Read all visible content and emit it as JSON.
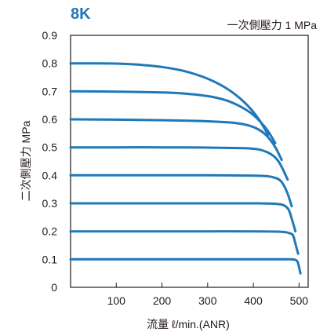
{
  "colors": {
    "series": "#1f78b9",
    "title": "#1f78b9",
    "axis": "#231815",
    "text": "#231815"
  },
  "chart_data": {
    "type": "line",
    "title": "8K",
    "subtitle": "一次側壓力 1 MPa",
    "xlabel": "流量  ℓ/min.(ANR)",
    "ylabel": "二次側壓力 MPa",
    "xlim": [
      0,
      520
    ],
    "ylim": [
      0,
      0.9
    ],
    "xticks": [
      100,
      200,
      300,
      400,
      500
    ],
    "xtick_labels": [
      "100",
      "200",
      "300",
      "400",
      "500"
    ],
    "yticks": [
      0,
      0.1,
      0.2,
      0.3,
      0.4,
      0.5,
      0.6,
      0.7,
      0.8,
      0.9
    ],
    "ytick_labels": [
      "0",
      "0.1",
      "0.2",
      "0.3",
      "0.4",
      "0.5",
      "0.6",
      "0.7",
      "0.8",
      "0.9"
    ],
    "grid": false,
    "legend": "none",
    "series": [
      {
        "x": [
          0,
          100,
          200,
          300,
          400,
          450,
          470,
          480,
          490,
          497,
          503
        ],
        "y": [
          0.1,
          0.1,
          0.1,
          0.1,
          0.1,
          0.1,
          0.1,
          0.1,
          0.099,
          0.09,
          0.05
        ]
      },
      {
        "x": [
          0,
          100,
          200,
          300,
          400,
          450,
          470,
          480,
          487,
          493,
          498
        ],
        "y": [
          0.2,
          0.2,
          0.2,
          0.2,
          0.2,
          0.199,
          0.197,
          0.193,
          0.185,
          0.15,
          0.12
        ]
      },
      {
        "x": [
          0,
          100,
          200,
          300,
          400,
          440,
          460,
          470,
          478,
          485,
          492
        ],
        "y": [
          0.3,
          0.3,
          0.3,
          0.3,
          0.3,
          0.299,
          0.296,
          0.29,
          0.275,
          0.24,
          0.2
        ]
      },
      {
        "x": [
          0,
          100,
          200,
          300,
          400,
          430,
          450,
          460,
          468,
          476,
          484
        ],
        "y": [
          0.4,
          0.4,
          0.4,
          0.4,
          0.399,
          0.397,
          0.39,
          0.38,
          0.36,
          0.33,
          0.29
        ]
      },
      {
        "x": [
          0,
          100,
          200,
          300,
          380,
          410,
          430,
          445,
          455,
          465,
          475
        ],
        "y": [
          0.5,
          0.5,
          0.5,
          0.499,
          0.497,
          0.493,
          0.483,
          0.468,
          0.45,
          0.42,
          0.385
        ]
      },
      {
        "x": [
          0,
          100,
          200,
          300,
          360,
          390,
          410,
          425,
          438,
          450,
          462
        ],
        "y": [
          0.6,
          0.599,
          0.597,
          0.593,
          0.587,
          0.578,
          0.565,
          0.548,
          0.525,
          0.495,
          0.455
        ]
      },
      {
        "x": [
          0,
          100,
          200,
          250,
          300,
          340,
          370,
          395,
          415,
          432,
          448
        ],
        "y": [
          0.7,
          0.699,
          0.696,
          0.692,
          0.683,
          0.668,
          0.647,
          0.622,
          0.592,
          0.558,
          0.515
        ]
      },
      {
        "x": [
          0,
          100,
          150,
          200,
          250,
          300,
          340,
          370,
          395,
          415,
          432
        ],
        "y": [
          0.8,
          0.799,
          0.795,
          0.787,
          0.772,
          0.745,
          0.712,
          0.676,
          0.636,
          0.593,
          0.545
        ]
      }
    ]
  }
}
